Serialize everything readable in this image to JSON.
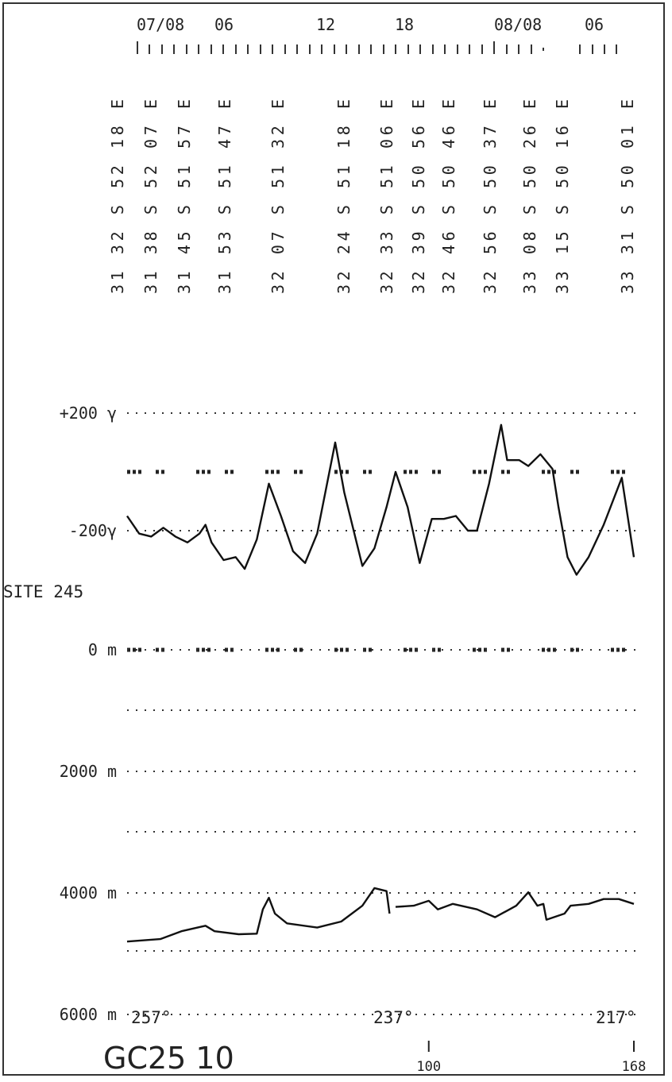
{
  "header": {
    "time_labels": [
      "07/08",
      "06",
      "12",
      "18",
      "08/08",
      "06"
    ],
    "positions": [
      "31 32 S 52 18 E",
      "31 38 S 52 07 E",
      "31 45 S 51 57 E",
      "31 53 S 51 47 E",
      "32 07 S 51 32 E",
      "32 24 S 51 18 E",
      "32 33 S 51 06 E",
      "32 39 S 50 56 E",
      "32 46 S 50 46 E",
      "32 56 S 50 37 E",
      "33 08 S 50 26 E",
      "33 15 S 50 16 E",
      "33 31 S 50 01 E"
    ]
  },
  "chart_data": [
    {
      "type": "line",
      "color": "#111111",
      "x": [
        0,
        4,
        8,
        12,
        16,
        20,
        24,
        26,
        28,
        32,
        36,
        39,
        43,
        47,
        51,
        55,
        59,
        63,
        69,
        72,
        78,
        82,
        86,
        89,
        93,
        97,
        101,
        105,
        109,
        113,
        116,
        120,
        124,
        126,
        130,
        133,
        137,
        141,
        143,
        146,
        149,
        153,
        158,
        164,
        168
      ],
      "values": [
        -150,
        -210,
        -220,
        -190,
        -220,
        -240,
        -210,
        -180,
        -240,
        -300,
        -290,
        -330,
        -230,
        -40,
        -150,
        -270,
        -310,
        -210,
        100,
        -70,
        -320,
        -260,
        -120,
        0,
        -120,
        -310,
        -160,
        -160,
        -150,
        -200,
        -200,
        -40,
        160,
        40,
        40,
        20,
        60,
        10,
        -120,
        -290,
        -350,
        -290,
        -180,
        -20,
        -290
      ],
      "xlim": [
        0,
        168
      ],
      "ylim": [
        -400,
        400
      ],
      "yticks": [
        {
          "value": 200,
          "label": "+200 γ"
        },
        {
          "value": -200,
          "label": "-200γ"
        }
      ],
      "grid": true
    },
    {
      "type": "line",
      "color": "#111111",
      "invert_y": true,
      "x": [
        0,
        11,
        18,
        26,
        29,
        37,
        43,
        45,
        47,
        49,
        53,
        63,
        71,
        78,
        82,
        86,
        87,
        88,
        89,
        95,
        100,
        103,
        108,
        116,
        122,
        129,
        133,
        136,
        138,
        139,
        145,
        147,
        153,
        158,
        163,
        168
      ],
      "values": [
        4800,
        4760,
        4630,
        4540,
        4630,
        4680,
        4670,
        4270,
        4080,
        4340,
        4500,
        4570,
        4470,
        4210,
        3920,
        3970,
        4340,
        null,
        4230,
        4210,
        4130,
        4270,
        4180,
        4270,
        4400,
        4210,
        3990,
        4210,
        4180,
        4440,
        4340,
        4210,
        4180,
        4100,
        4100,
        4180
      ],
      "xlim": [
        0,
        168
      ],
      "ylim": [
        0,
        6000
      ],
      "yticks": [
        {
          "value": 0,
          "label": "0 m"
        },
        {
          "value": 2000,
          "label": "2000 m"
        },
        {
          "value": 4000,
          "label": "4000 m"
        },
        {
          "value": 6000,
          "label": "6000 m"
        }
      ],
      "xticks": [
        100,
        168
      ],
      "grid": true
    }
  ],
  "site_label": "SITE 245",
  "annotations": [
    "257°",
    "237°",
    "217°"
  ],
  "footer": "GC25 10"
}
